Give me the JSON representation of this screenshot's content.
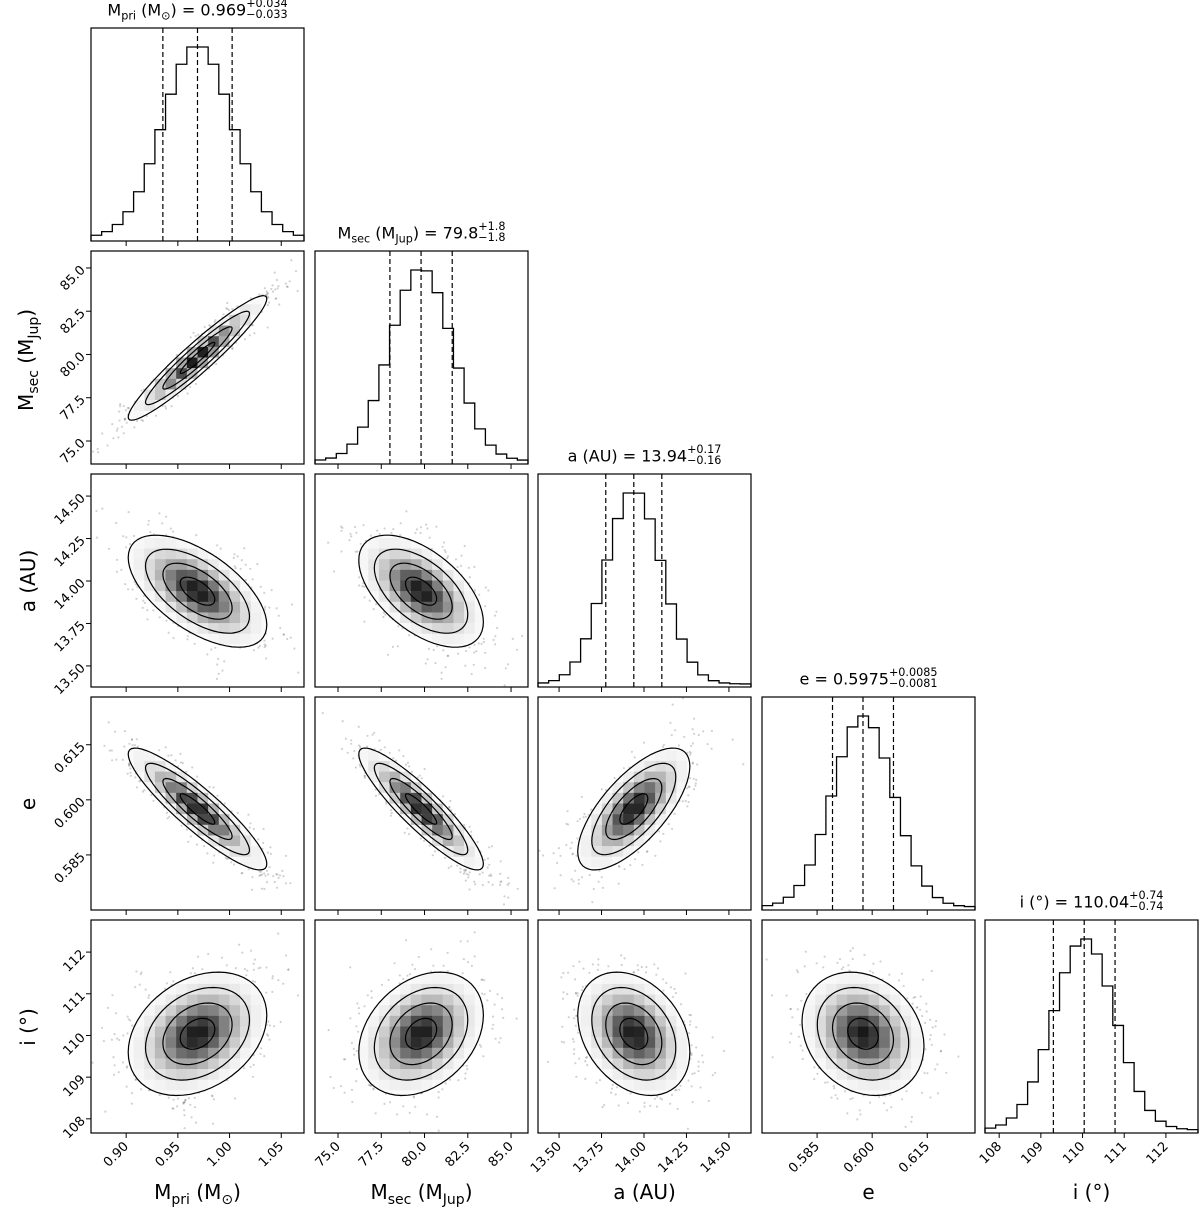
{
  "chart_data": {
    "type": "corner",
    "hist_bins": 20,
    "contour_levels_sigma": [
      0.5,
      1.0,
      1.5,
      2.0
    ],
    "params": [
      {
        "key": "Mpri",
        "label": [
          {
            "t": "M"
          },
          {
            "t": "pri",
            "s": 1
          },
          {
            "t": " (M"
          },
          {
            "t": "⊙",
            "s": 1
          },
          {
            "t": ")"
          }
        ],
        "title_eq": " = 0.969",
        "plus": "+0.034",
        "minus": "−0.033",
        "mean": 0.969,
        "sigma": 0.0335,
        "range": [
          0.866,
          1.072
        ],
        "ticks": [
          0.9,
          0.95,
          1.0,
          1.05
        ],
        "tick_labels": [
          "0.90",
          "0.95",
          "1.00",
          "1.05"
        ]
      },
      {
        "key": "Msec",
        "label": [
          {
            "t": "M"
          },
          {
            "t": "sec",
            "s": 1
          },
          {
            "t": " (M"
          },
          {
            "t": "Jup",
            "s": 1
          },
          {
            "t": ")"
          }
        ],
        "title_eq": " = 79.8",
        "plus": "+1.8",
        "minus": "−1.8",
        "mean": 79.8,
        "sigma": 1.8,
        "range": [
          73.67,
          85.98
        ],
        "ticks": [
          75,
          77.5,
          80,
          82.5,
          85
        ],
        "tick_labels": [
          "75.0",
          "77.5",
          "80.0",
          "82.5",
          "85.0"
        ]
      },
      {
        "key": "a",
        "label": [
          {
            "t": "a (AU)"
          }
        ],
        "title_eq": " = 13.94",
        "plus": "+0.17",
        "minus": "−0.16",
        "mean": 13.94,
        "sigma": 0.165,
        "range": [
          13.376,
          14.63
        ],
        "ticks": [
          13.5,
          13.75,
          14.0,
          14.25,
          14.5
        ],
        "tick_labels": [
          "13.50",
          "13.75",
          "14.00",
          "14.25",
          "14.50"
        ]
      },
      {
        "key": "e",
        "label": [
          {
            "t": "e"
          }
        ],
        "title_eq": " = 0.5975",
        "plus": "+0.0085",
        "minus": "−0.0081",
        "mean": 0.5975,
        "sigma": 0.0083,
        "range": [
          0.57,
          0.628
        ],
        "ticks": [
          0.585,
          0.6,
          0.615
        ],
        "tick_labels": [
          "0.585",
          "0.600",
          "0.615"
        ]
      },
      {
        "key": "i",
        "label": [
          {
            "t": "i (°)"
          }
        ],
        "title_eq": " = 110.04",
        "plus": "+0.74",
        "minus": "−0.74",
        "mean": 110.04,
        "sigma": 0.74,
        "range": [
          107.66,
          112.77
        ],
        "ticks": [
          108,
          109,
          110,
          111,
          112
        ],
        "tick_labels": [
          "108",
          "109",
          "110",
          "111",
          "112"
        ]
      }
    ],
    "correlations": [
      [
        1,
        0,
        0.95
      ],
      [
        2,
        0,
        -0.6
      ],
      [
        2,
        1,
        -0.55
      ],
      [
        3,
        0,
        -0.9
      ],
      [
        3,
        1,
        -0.9
      ],
      [
        3,
        2,
        0.7
      ],
      [
        4,
        0,
        0.3
      ],
      [
        4,
        1,
        0.3
      ],
      [
        4,
        2,
        -0.3
      ],
      [
        4,
        3,
        -0.2
      ]
    ],
    "colors": {
      "line": "#000000",
      "points": "#000000",
      "grid_fill": "#ffffff"
    }
  }
}
